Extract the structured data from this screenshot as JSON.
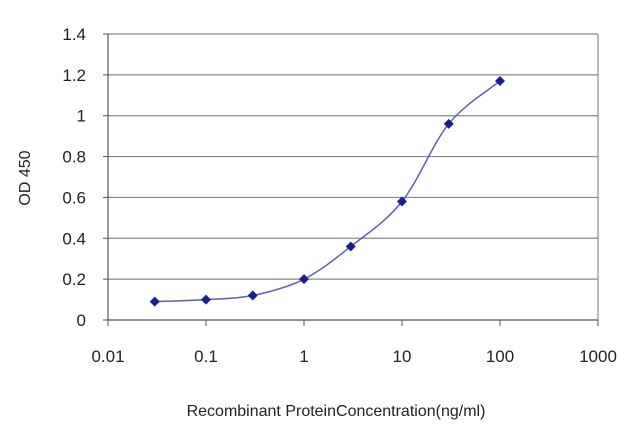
{
  "chart_data": {
    "type": "line",
    "title": "",
    "xlabel": "Recombinant ProteinConcentration(ng/ml)",
    "ylabel": "OD 450",
    "x_scale": "log",
    "xlim": [
      0.01,
      1000
    ],
    "ylim": [
      0,
      1.4
    ],
    "x_ticks": [
      "0.01",
      "0.1",
      "1",
      "10",
      "100",
      "1000"
    ],
    "y_ticks": [
      "0",
      "0.2",
      "0.4",
      "0.6",
      "0.8",
      "1",
      "1.2",
      "1.4"
    ],
    "grid": "horizontal",
    "legend": "none",
    "series": [
      {
        "x": [
          0.03,
          0.1,
          0.3,
          1,
          3,
          10,
          30,
          100
        ],
        "y": [
          0.09,
          0.1,
          0.12,
          0.2,
          0.36,
          0.58,
          0.96,
          1.17
        ]
      }
    ],
    "colors": {
      "line": "#5b5fb0",
      "marker": "#1a1f8a",
      "grid": "#888888",
      "axis": "#555555"
    }
  }
}
